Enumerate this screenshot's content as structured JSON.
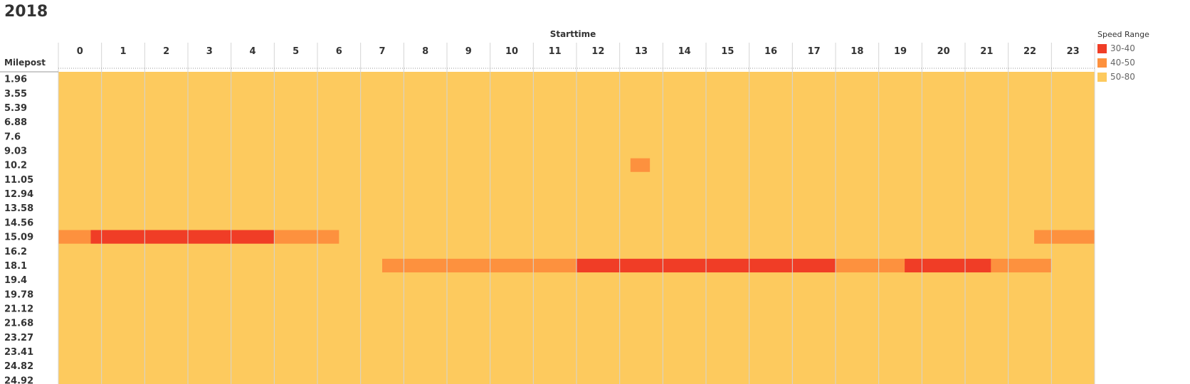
{
  "title": "2018",
  "chart_data": {
    "type": "heatmap",
    "title": "2018",
    "xlabel": "Starttime",
    "ylabel": "Milepost",
    "x": [
      "0",
      "1",
      "2",
      "3",
      "4",
      "5",
      "6",
      "7",
      "8",
      "9",
      "10",
      "11",
      "12",
      "13",
      "14",
      "15",
      "16",
      "17",
      "18",
      "19",
      "20",
      "21",
      "22",
      "23"
    ],
    "y": [
      "1.96",
      "3.55",
      "5.39",
      "6.88",
      "7.6",
      "9.03",
      "10.2",
      "11.05",
      "12.94",
      "13.58",
      "14.56",
      "15.09",
      "16.2",
      "18.1",
      "19.4",
      "19.78",
      "21.12",
      "21.68",
      "23.27",
      "23.41",
      "24.82",
      "24.92"
    ],
    "default_category": "50-80",
    "cells": [
      {
        "y": "10.2",
        "x_start": 13.25,
        "x_end": 13.7,
        "category": "40-50"
      },
      {
        "y": "15.09",
        "x_start": 0,
        "x_end": 0.75,
        "category": "40-50"
      },
      {
        "y": "15.09",
        "x_start": 0.75,
        "x_end": 5.0,
        "category": "30-40"
      },
      {
        "y": "15.09",
        "x_start": 5.0,
        "x_end": 6.5,
        "category": "40-50"
      },
      {
        "y": "15.09",
        "x_start": 22.6,
        "x_end": 24.0,
        "category": "40-50"
      },
      {
        "y": "18.1",
        "x_start": 7.5,
        "x_end": 12.0,
        "category": "40-50"
      },
      {
        "y": "18.1",
        "x_start": 12.0,
        "x_end": 18.0,
        "category": "30-40"
      },
      {
        "y": "18.1",
        "x_start": 18.0,
        "x_end": 19.6,
        "category": "40-50"
      },
      {
        "y": "18.1",
        "x_start": 19.6,
        "x_end": 21.6,
        "category": "30-40"
      },
      {
        "y": "18.1",
        "x_start": 21.6,
        "x_end": 23.0,
        "category": "40-50"
      }
    ],
    "legend": {
      "title": "Speed Range",
      "placement": "right",
      "items": [
        {
          "label": "30-40",
          "color": "#F03D26"
        },
        {
          "label": "40-50",
          "color": "#FD913E"
        },
        {
          "label": "50-80",
          "color": "#FDCA5E"
        }
      ]
    },
    "grid": true
  }
}
